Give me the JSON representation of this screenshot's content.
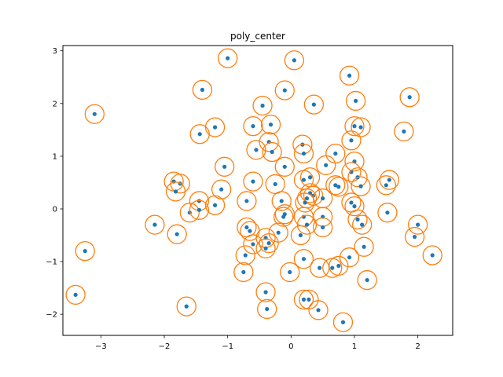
{
  "chart_data": {
    "type": "scatter",
    "title": "poly_center",
    "xlabel": "",
    "ylabel": "",
    "xlim": [
      -3.6,
      2.55
    ],
    "ylim": [
      -2.4,
      3.1
    ],
    "xticks": [
      -3,
      -2,
      -1,
      0,
      1,
      2
    ],
    "yticks": [
      -2,
      -1,
      0,
      1,
      2,
      3
    ],
    "grid": false,
    "colors": {
      "points": "#1f77b4",
      "circles": "#ff7f0e"
    },
    "series": [
      {
        "marker": "dot with circle",
        "points": [
          [
            -3.1,
            1.8
          ],
          [
            -3.25,
            -0.8
          ],
          [
            -3.4,
            -1.63
          ],
          [
            -1.4,
            2.26
          ],
          [
            -1.0,
            2.86
          ],
          [
            0.05,
            2.82
          ],
          [
            0.92,
            2.53
          ],
          [
            1.87,
            2.12
          ],
          [
            -0.45,
            1.96
          ],
          [
            -0.1,
            2.25
          ],
          [
            0.36,
            1.98
          ],
          [
            1.02,
            2.05
          ],
          [
            -1.44,
            1.42
          ],
          [
            -1.2,
            1.55
          ],
          [
            -0.6,
            1.57
          ],
          [
            -0.32,
            1.6
          ],
          [
            1.0,
            1.57
          ],
          [
            1.1,
            1.55
          ],
          [
            1.78,
            1.47
          ],
          [
            -0.55,
            1.12
          ],
          [
            -0.35,
            1.27
          ],
          [
            -0.3,
            1.08
          ],
          [
            0.18,
            1.22
          ],
          [
            0.2,
            1.05
          ],
          [
            0.7,
            1.05
          ],
          [
            0.95,
            1.3
          ],
          [
            -1.05,
            0.8
          ],
          [
            -0.1,
            0.8
          ],
          [
            0.55,
            0.83
          ],
          [
            1.0,
            0.9
          ],
          [
            0.95,
            0.7
          ],
          [
            1.05,
            0.6
          ],
          [
            1.55,
            0.55
          ],
          [
            1.5,
            0.45
          ],
          [
            1.1,
            0.43
          ],
          [
            0.75,
            0.42
          ],
          [
            0.7,
            0.45
          ],
          [
            0.3,
            0.6
          ],
          [
            0.2,
            0.55
          ],
          [
            0.3,
            0.3
          ],
          [
            0.35,
            0.25
          ],
          [
            0.25,
            0.2
          ],
          [
            -0.6,
            0.52
          ],
          [
            -0.25,
            0.47
          ],
          [
            -0.15,
            0.15
          ],
          [
            -1.85,
            0.52
          ],
          [
            -1.75,
            0.48
          ],
          [
            -1.82,
            0.33
          ],
          [
            -1.1,
            0.37
          ],
          [
            -0.7,
            0.15
          ],
          [
            0.5,
            0.2
          ],
          [
            0.95,
            0.12
          ],
          [
            0.22,
            0.12
          ],
          [
            -1.45,
            0.15
          ],
          [
            -1.2,
            0.07
          ],
          [
            -1.6,
            -0.07
          ],
          [
            -1.45,
            -0.02
          ],
          [
            -0.1,
            -0.1
          ],
          [
            -0.12,
            -0.15
          ],
          [
            0.2,
            -0.15
          ],
          [
            0.5,
            -0.15
          ],
          [
            1.0,
            0.05
          ],
          [
            1.05,
            -0.2
          ],
          [
            1.12,
            -0.3
          ],
          [
            1.52,
            -0.07
          ],
          [
            2.0,
            -0.3
          ],
          [
            1.95,
            -0.53
          ],
          [
            2.23,
            -0.88
          ],
          [
            1.15,
            -0.72
          ],
          [
            1.2,
            -1.35
          ],
          [
            -2.15,
            -0.3
          ],
          [
            -1.8,
            -0.48
          ],
          [
            -0.7,
            -0.35
          ],
          [
            -0.65,
            -0.42
          ],
          [
            -0.4,
            -0.55
          ],
          [
            -0.35,
            -0.65
          ],
          [
            -0.2,
            -0.45
          ],
          [
            0.15,
            -0.5
          ],
          [
            0.25,
            -0.3
          ],
          [
            0.5,
            -0.35
          ],
          [
            -0.6,
            -0.67
          ],
          [
            -0.72,
            -0.88
          ],
          [
            -0.4,
            -0.75
          ],
          [
            0.2,
            -0.95
          ],
          [
            0.45,
            -1.12
          ],
          [
            0.65,
            -1.12
          ],
          [
            0.75,
            -1.08
          ],
          [
            0.92,
            -0.92
          ],
          [
            -0.75,
            -1.2
          ],
          [
            -0.02,
            -1.2
          ],
          [
            -0.4,
            -1.58
          ],
          [
            -1.65,
            -1.85
          ],
          [
            0.2,
            -1.72
          ],
          [
            0.28,
            -1.72
          ],
          [
            -0.38,
            -1.9
          ],
          [
            0.43,
            -1.92
          ],
          [
            0.82,
            -2.15
          ]
        ]
      }
    ]
  }
}
